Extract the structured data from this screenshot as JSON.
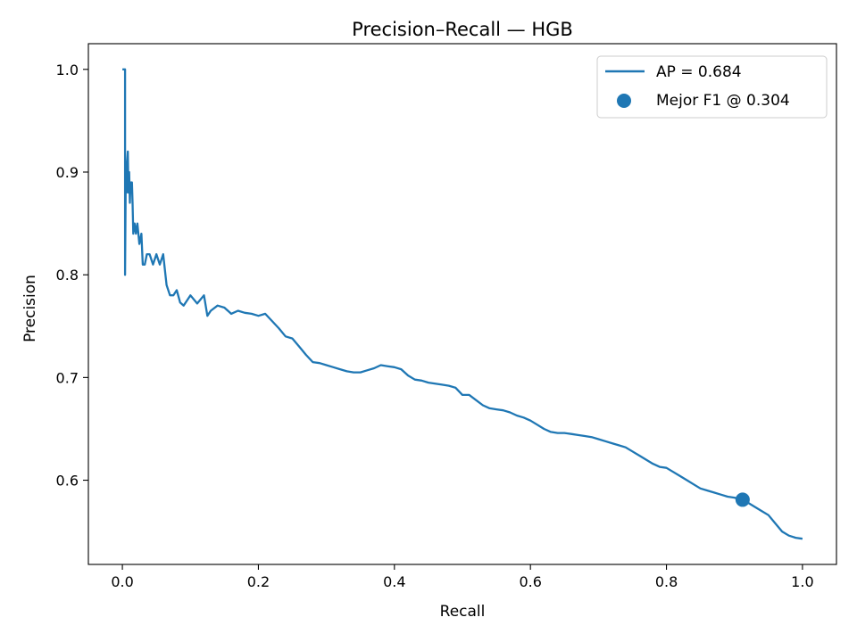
{
  "chart_data": {
    "type": "line",
    "title": "Precision–Recall — HGB",
    "xlabel": "Recall",
    "ylabel": "Precision",
    "xlim": [
      -0.05,
      1.05
    ],
    "ylim": [
      0.518,
      1.025
    ],
    "xticks": [
      0.0,
      0.2,
      0.4,
      0.6,
      0.8,
      1.0
    ],
    "xtick_labels": [
      "0.0",
      "0.2",
      "0.4",
      "0.6",
      "0.8",
      "1.0"
    ],
    "yticks": [
      0.6,
      0.7,
      0.8,
      0.9,
      1.0
    ],
    "ytick_labels": [
      "0.6",
      "0.7",
      "0.8",
      "0.9",
      "1.0"
    ],
    "grid": false,
    "legend_position": "top-right",
    "colors": {
      "series": "#1f77b4",
      "axes": "#000000",
      "background": "#ffffff"
    },
    "series": [
      {
        "name": "AP = 0.684",
        "type": "line",
        "x": [
          0.0,
          0.004,
          0.004,
          0.005,
          0.006,
          0.007,
          0.008,
          0.009,
          0.01,
          0.011,
          0.012,
          0.013,
          0.014,
          0.015,
          0.016,
          0.018,
          0.02,
          0.022,
          0.025,
          0.028,
          0.03,
          0.033,
          0.036,
          0.04,
          0.045,
          0.05,
          0.055,
          0.06,
          0.065,
          0.07,
          0.075,
          0.08,
          0.085,
          0.09,
          0.095,
          0.1,
          0.11,
          0.12,
          0.125,
          0.13,
          0.14,
          0.15,
          0.16,
          0.17,
          0.18,
          0.19,
          0.2,
          0.21,
          0.22,
          0.23,
          0.24,
          0.25,
          0.26,
          0.27,
          0.28,
          0.29,
          0.3,
          0.31,
          0.32,
          0.33,
          0.34,
          0.35,
          0.36,
          0.37,
          0.38,
          0.39,
          0.4,
          0.41,
          0.42,
          0.43,
          0.44,
          0.45,
          0.46,
          0.47,
          0.48,
          0.49,
          0.5,
          0.51,
          0.52,
          0.53,
          0.54,
          0.55,
          0.56,
          0.57,
          0.58,
          0.59,
          0.6,
          0.61,
          0.62,
          0.63,
          0.64,
          0.65,
          0.66,
          0.67,
          0.68,
          0.69,
          0.7,
          0.71,
          0.72,
          0.73,
          0.74,
          0.75,
          0.76,
          0.77,
          0.78,
          0.79,
          0.8,
          0.81,
          0.82,
          0.83,
          0.84,
          0.85,
          0.86,
          0.87,
          0.88,
          0.89,
          0.9,
          0.91,
          0.92,
          0.93,
          0.94,
          0.95,
          0.96,
          0.97,
          0.98,
          0.99,
          1.0
        ],
        "y": [
          1.0,
          1.0,
          0.8,
          0.9,
          0.88,
          0.91,
          0.92,
          0.88,
          0.9,
          0.87,
          0.89,
          0.88,
          0.89,
          0.87,
          0.84,
          0.85,
          0.84,
          0.85,
          0.83,
          0.84,
          0.81,
          0.81,
          0.82,
          0.82,
          0.81,
          0.82,
          0.81,
          0.82,
          0.79,
          0.78,
          0.78,
          0.785,
          0.773,
          0.77,
          0.775,
          0.78,
          0.772,
          0.78,
          0.76,
          0.765,
          0.77,
          0.768,
          0.762,
          0.765,
          0.763,
          0.762,
          0.76,
          0.762,
          0.755,
          0.748,
          0.74,
          0.738,
          0.73,
          0.722,
          0.715,
          0.714,
          0.712,
          0.71,
          0.708,
          0.706,
          0.705,
          0.705,
          0.707,
          0.709,
          0.712,
          0.711,
          0.71,
          0.708,
          0.702,
          0.698,
          0.697,
          0.695,
          0.694,
          0.693,
          0.692,
          0.69,
          0.683,
          0.683,
          0.678,
          0.673,
          0.67,
          0.669,
          0.668,
          0.666,
          0.663,
          0.661,
          0.658,
          0.654,
          0.65,
          0.647,
          0.646,
          0.646,
          0.645,
          0.644,
          0.643,
          0.642,
          0.64,
          0.638,
          0.636,
          0.634,
          0.632,
          0.628,
          0.624,
          0.62,
          0.616,
          0.613,
          0.612,
          0.608,
          0.604,
          0.6,
          0.596,
          0.592,
          0.59,
          0.588,
          0.586,
          0.584,
          0.583,
          0.581,
          0.578,
          0.574,
          0.57,
          0.566,
          0.558,
          0.55,
          0.546,
          0.544,
          0.543
        ]
      },
      {
        "name": "Mejor F1 @ 0.304",
        "type": "scatter",
        "x": [
          0.912
        ],
        "y": [
          0.581
        ]
      }
    ]
  }
}
